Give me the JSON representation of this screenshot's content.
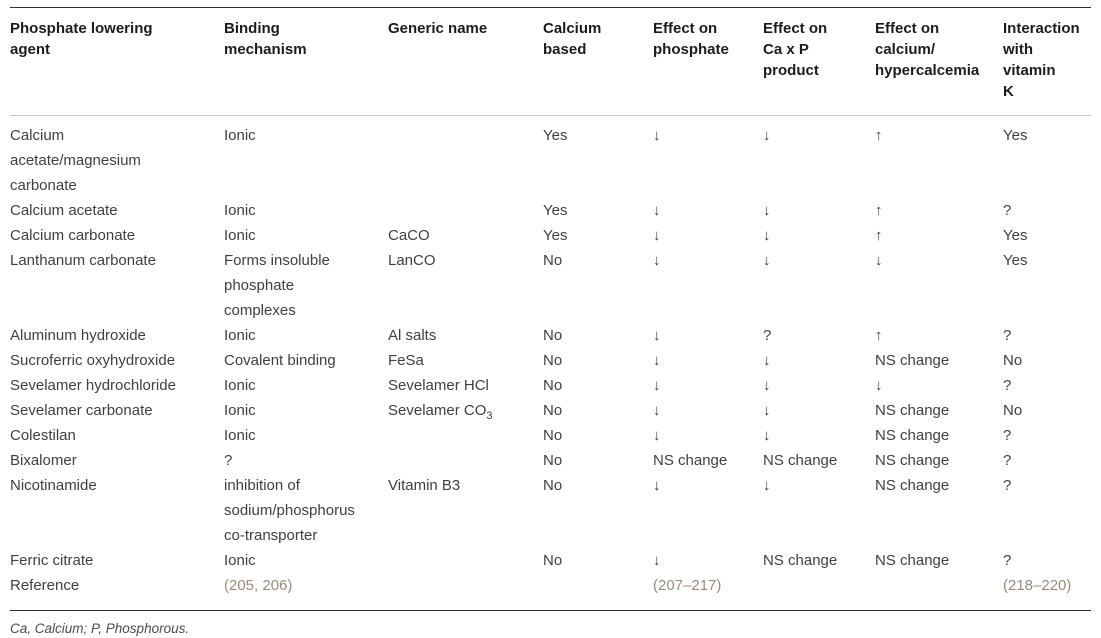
{
  "table": {
    "columns": [
      "Phosphate lowering\nagent",
      "Binding\nmechanism",
      "Generic name",
      "Calcium\nbased",
      "Effect on\nphosphate",
      "Effect on\nCa x P\nproduct",
      "Effect on\ncalcium/\nhypercalcemia",
      "Interaction\nwith vitamin\nK"
    ],
    "rows": [
      {
        "agent": "Calcium\nacetate/magnesium\ncarbonate",
        "binding": "Ionic",
        "generic": "",
        "generic_sub": "",
        "calcium_based": "Yes",
        "effect_phosphate": "↓",
        "effect_caxp": "↓",
        "effect_calcium": "↑",
        "vitamin_k": "Yes",
        "is_reference": false
      },
      {
        "agent": "Calcium acetate",
        "binding": "Ionic",
        "generic": "",
        "generic_sub": "",
        "calcium_based": "Yes",
        "effect_phosphate": "↓",
        "effect_caxp": "↓",
        "effect_calcium": "↑",
        "vitamin_k": "?",
        "is_reference": false
      },
      {
        "agent": "Calcium carbonate",
        "binding": "Ionic",
        "generic": "CaCO",
        "generic_sub": "",
        "calcium_based": "Yes",
        "effect_phosphate": "↓",
        "effect_caxp": "↓",
        "effect_calcium": "↑",
        "vitamin_k": "Yes",
        "is_reference": false
      },
      {
        "agent": "Lanthanum carbonate",
        "binding": "Forms insoluble\nphosphate\ncomplexes",
        "generic": "LanCO",
        "generic_sub": "",
        "calcium_based": "No",
        "effect_phosphate": "↓",
        "effect_caxp": "↓",
        "effect_calcium": "↓",
        "vitamin_k": "Yes",
        "is_reference": false
      },
      {
        "agent": "Aluminum hydroxide",
        "binding": "Ionic",
        "generic": "Al salts",
        "generic_sub": "",
        "calcium_based": "No",
        "effect_phosphate": "↓",
        "effect_caxp": "?",
        "effect_calcium": "↑",
        "vitamin_k": "?",
        "is_reference": false
      },
      {
        "agent": "Sucroferric oxyhydroxide",
        "binding": "Covalent binding",
        "generic": "FeSa",
        "generic_sub": "",
        "calcium_based": "No",
        "effect_phosphate": "↓",
        "effect_caxp": "↓",
        "effect_calcium": "NS change",
        "vitamin_k": "No",
        "is_reference": false
      },
      {
        "agent": "Sevelamer hydrochloride",
        "binding": "Ionic",
        "generic": "Sevelamer HCl",
        "generic_sub": "",
        "calcium_based": "No",
        "effect_phosphate": "↓",
        "effect_caxp": "↓",
        "effect_calcium": "↓",
        "vitamin_k": "?",
        "is_reference": false
      },
      {
        "agent": "Sevelamer carbonate",
        "binding": "Ionic",
        "generic": "Sevelamer CO",
        "generic_sub": "3",
        "calcium_based": "No",
        "effect_phosphate": "↓",
        "effect_caxp": "↓",
        "effect_calcium": "NS change",
        "vitamin_k": "No",
        "is_reference": false
      },
      {
        "agent": "Colestilan",
        "binding": "Ionic",
        "generic": "",
        "generic_sub": "",
        "calcium_based": "No",
        "effect_phosphate": "↓",
        "effect_caxp": "↓",
        "effect_calcium": "NS change",
        "vitamin_k": "?",
        "is_reference": false
      },
      {
        "agent": "Bixalomer",
        "binding": "?",
        "generic": "",
        "generic_sub": "",
        "calcium_based": "No",
        "effect_phosphate": "NS change",
        "effect_caxp": "NS change",
        "effect_calcium": "NS change",
        "vitamin_k": "?",
        "is_reference": false
      },
      {
        "agent": "Nicotinamide",
        "binding": "inhibition of\nsodium/phosphorus\nco-transporter",
        "generic": "Vitamin B3",
        "generic_sub": "",
        "calcium_based": "No",
        "effect_phosphate": "↓",
        "effect_caxp": "↓",
        "effect_calcium": "NS change",
        "vitamin_k": "?",
        "is_reference": false
      },
      {
        "agent": "Ferric citrate",
        "binding": "Ionic",
        "generic": "",
        "generic_sub": "",
        "calcium_based": "No",
        "effect_phosphate": "↓",
        "effect_caxp": "NS change",
        "effect_calcium": "NS change",
        "vitamin_k": "?",
        "is_reference": false
      },
      {
        "agent": "Reference",
        "binding": "(205, 206)",
        "generic": "",
        "generic_sub": "",
        "calcium_based": "",
        "effect_phosphate": "(207–217)",
        "effect_caxp": "",
        "effect_calcium": "",
        "vitamin_k": "(218–220)",
        "is_reference": true
      }
    ],
    "footnote": "Ca, Calcium; P, Phosphorous."
  },
  "colors": {
    "rule_dark": "#2f2f2f",
    "rule_light": "#c9c9c9",
    "header_text": "#1c1c1c",
    "body_text": "#3f3f3f",
    "reference": "#9a8b7c",
    "footnote": "#4c4c4c"
  }
}
